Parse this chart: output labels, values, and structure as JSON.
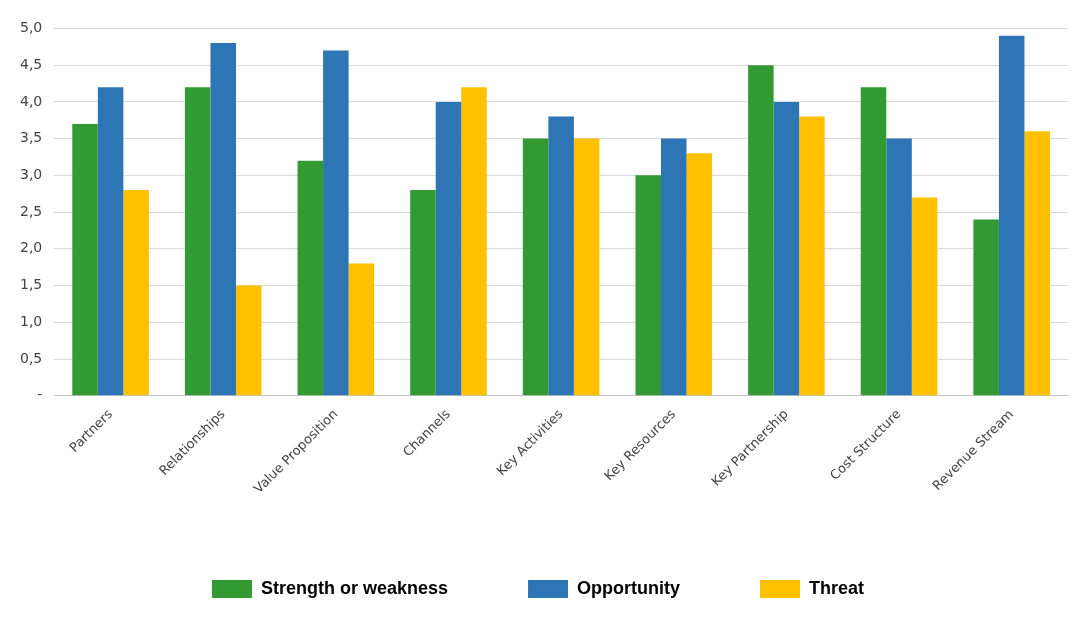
{
  "chart_data": {
    "type": "bar",
    "categories": [
      "Partners",
      "Relationships",
      "Value Proposition",
      "Channels",
      "Key Activities",
      "Key Resources",
      "Key Partnership",
      "Cost Structure",
      "Revenue Stream"
    ],
    "series": [
      {
        "name": "Strength or weakness",
        "color": "#339933",
        "values": [
          3.7,
          4.2,
          3.2,
          2.8,
          3.5,
          3.0,
          4.5,
          4.2,
          2.4
        ]
      },
      {
        "name": "Opportunity",
        "color": "#2e75b6",
        "values": [
          4.2,
          4.8,
          4.7,
          4.0,
          3.8,
          3.5,
          4.0,
          3.5,
          4.9
        ]
      },
      {
        "name": "Threat",
        "color": "#ffc000",
        "values": [
          2.8,
          1.5,
          1.8,
          4.2,
          3.5,
          3.3,
          3.8,
          2.7,
          3.6
        ]
      }
    ],
    "ylim": [
      0,
      5
    ],
    "yticks": [
      {
        "value": 0,
        "label": "-"
      },
      {
        "value": 0.5,
        "label": "0,5"
      },
      {
        "value": 1,
        "label": "1,0"
      },
      {
        "value": 1.5,
        "label": "1,5"
      },
      {
        "value": 2,
        "label": "2,0"
      },
      {
        "value": 2.5,
        "label": "2,5"
      },
      {
        "value": 3,
        "label": "3,0"
      },
      {
        "value": 3.5,
        "label": "3,5"
      },
      {
        "value": 4,
        "label": "4,0"
      },
      {
        "value": 4.5,
        "label": "4,5"
      },
      {
        "value": 5,
        "label": "5,0"
      }
    ],
    "grid": "y",
    "legend": "bottom"
  }
}
